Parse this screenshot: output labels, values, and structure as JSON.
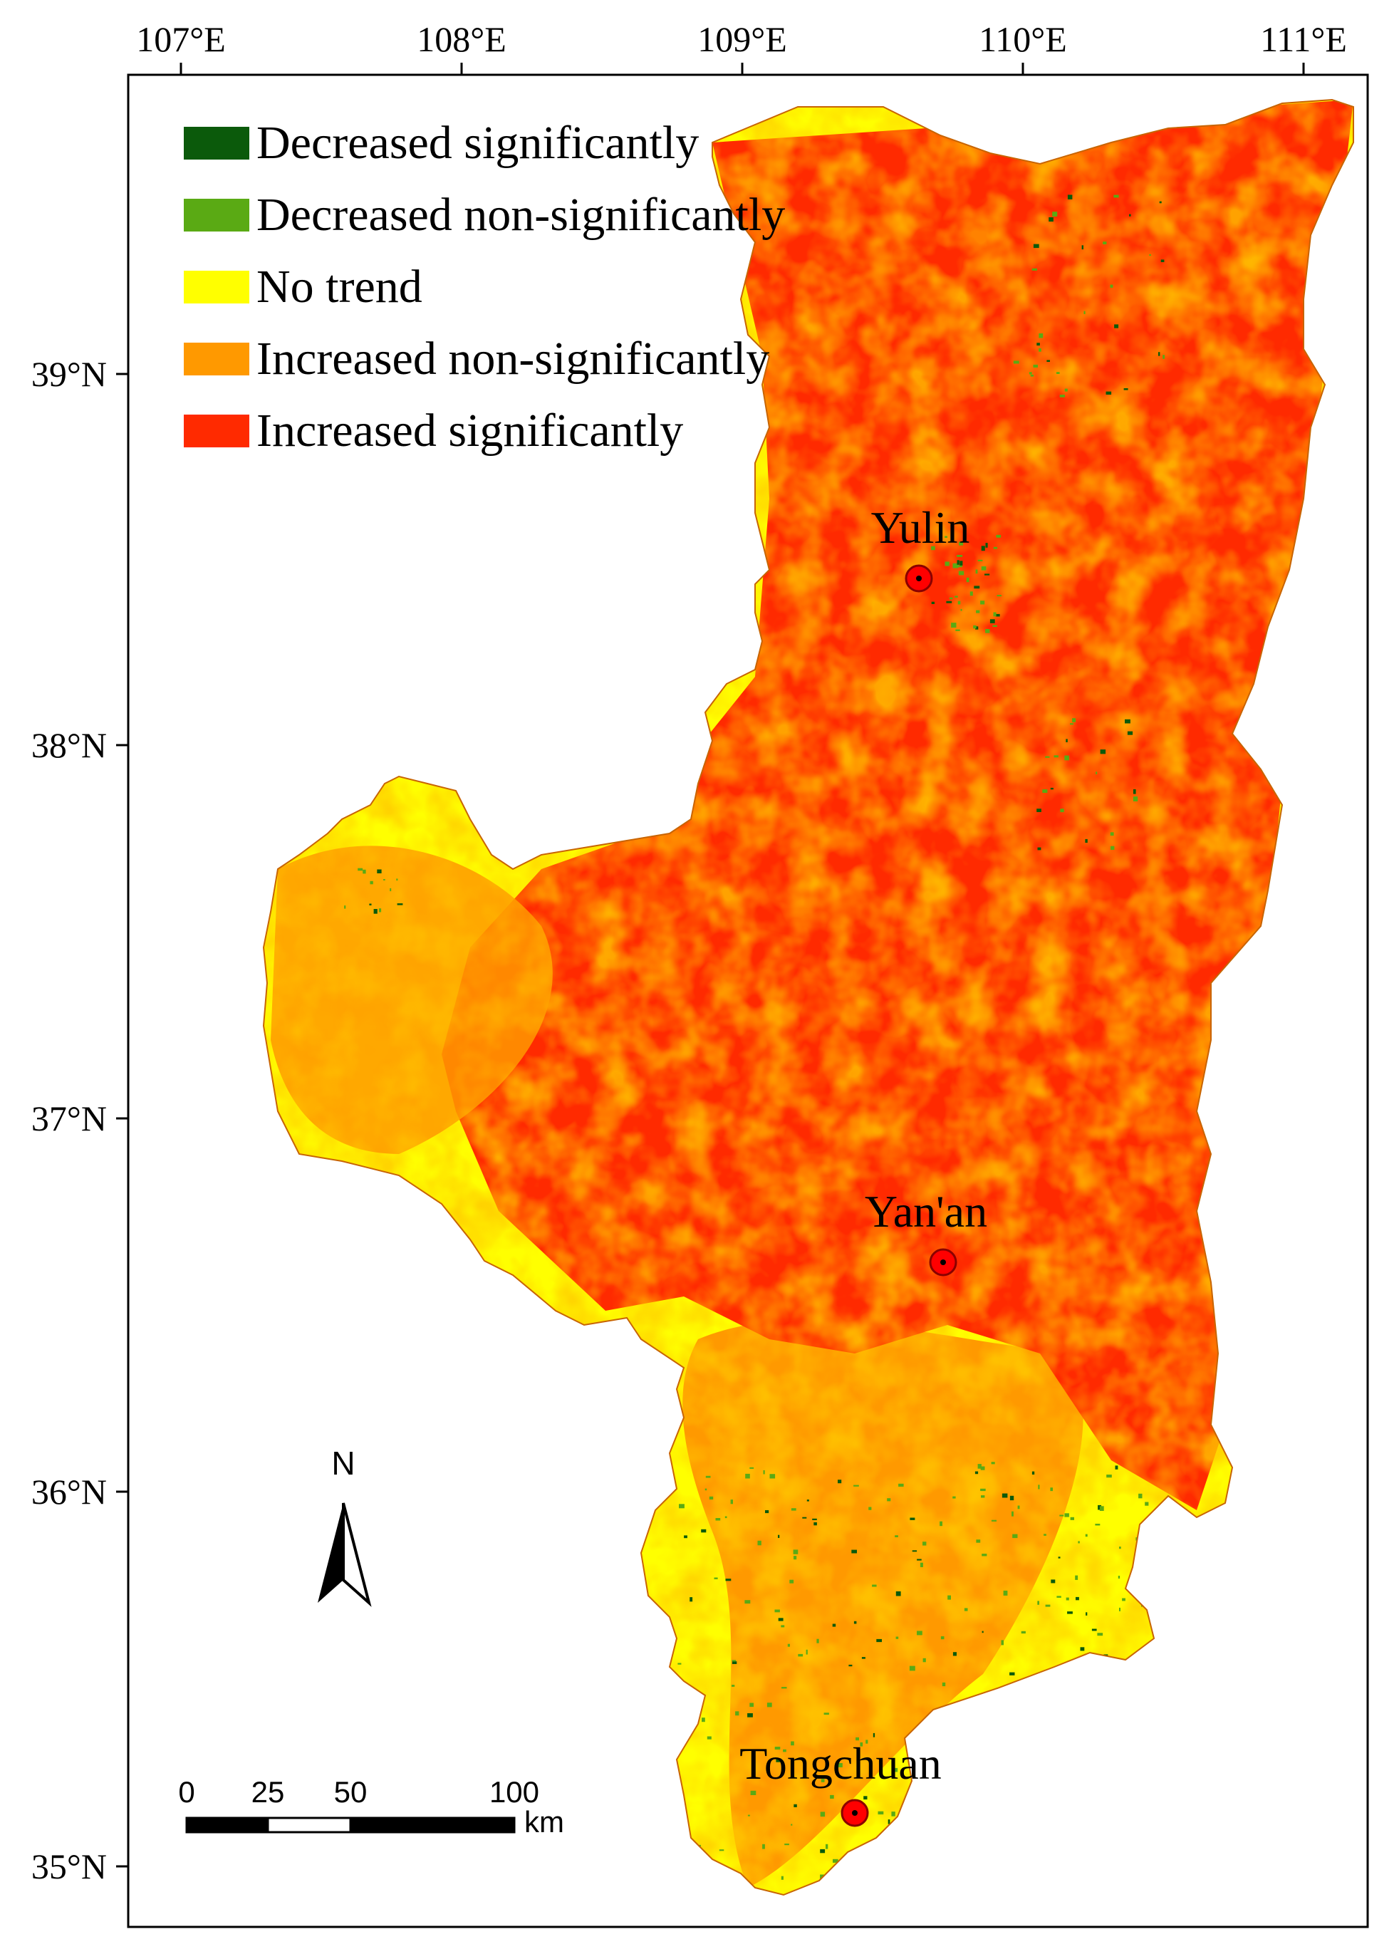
{
  "axes": {
    "lon_ticks": [
      "107°E",
      "108°E",
      "109°E",
      "110°E",
      "111°E"
    ],
    "lat_ticks": [
      "39°N",
      "38°N",
      "37°N",
      "36°N",
      "35°N"
    ]
  },
  "legend": {
    "items": [
      {
        "label": "Decreased significantly",
        "color": "#0b5a0b"
      },
      {
        "label": "Decreased non-significantly",
        "color": "#5aaa14"
      },
      {
        "label": "No trend",
        "color": "#ffff00"
      },
      {
        "label": "Increased non-significantly",
        "color": "#ff9900"
      },
      {
        "label": "Increased significantly",
        "color": "#ff2a00"
      }
    ]
  },
  "cities": [
    {
      "name": "Yulin"
    },
    {
      "name": "Yan'an"
    },
    {
      "name": "Tongchuan"
    }
  ],
  "north_arrow": {
    "label": "N",
    "icon": "north-arrow-icon"
  },
  "scale_bar": {
    "ticks": [
      "0",
      "25",
      "50",
      "100"
    ],
    "unit": "km"
  }
}
